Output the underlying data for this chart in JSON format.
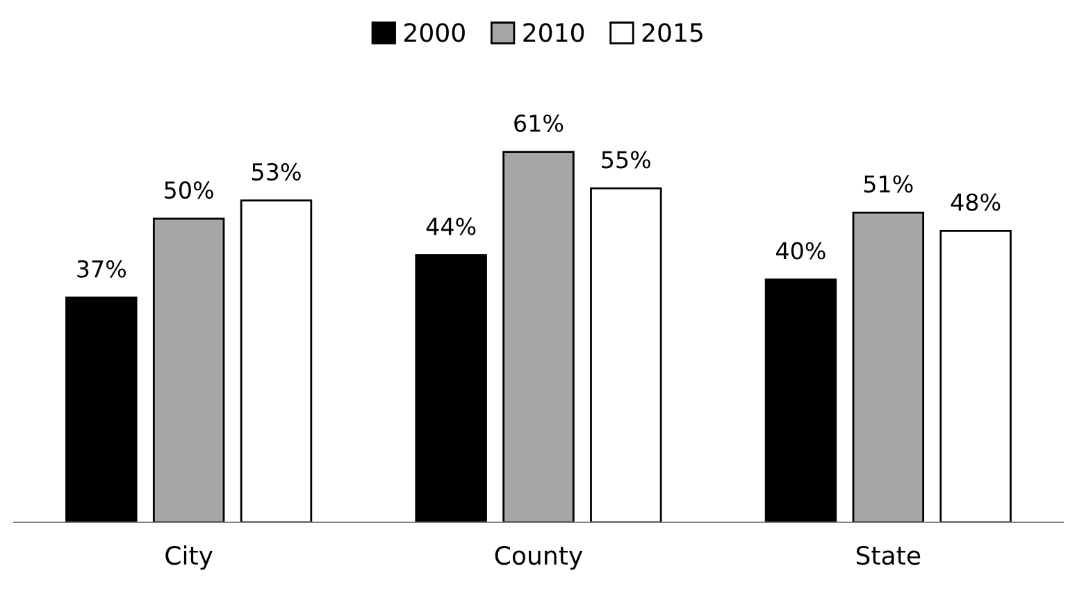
{
  "chart_data": {
    "type": "bar",
    "categories": [
      "City",
      "County",
      "State"
    ],
    "series": [
      {
        "name": "2000",
        "color": "#000000",
        "values": [
          37,
          44,
          40
        ],
        "value_labels": [
          "37%",
          "44%",
          "40%"
        ]
      },
      {
        "name": "2010",
        "color": "#a6a6a6",
        "values": [
          50,
          61,
          51
        ],
        "value_labels": [
          "50%",
          "61%",
          "51%"
        ]
      },
      {
        "name": "2015",
        "color": "#ffffff",
        "values": [
          53,
          55,
          48
        ],
        "value_labels": [
          "53%",
          "55%",
          "48%"
        ]
      }
    ],
    "legend": "top",
    "grid": false
  }
}
